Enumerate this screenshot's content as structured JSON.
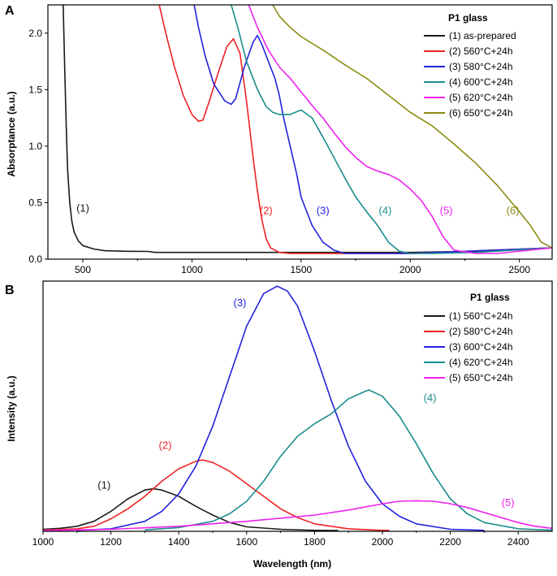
{
  "chart_data": [
    {
      "panel": "A",
      "type": "line",
      "title": "",
      "xlabel": "",
      "ylabel": "Absorptance (a.u.)",
      "xlim": [
        340,
        2650
      ],
      "ylim": [
        0,
        2.25
      ],
      "xticks": [
        500,
        1000,
        1500,
        2000,
        2500
      ],
      "xtick_labels": [
        "500",
        "1000",
        "1500",
        "2000",
        "2500"
      ],
      "yticks": [
        0.0,
        0.5,
        1.0,
        1.5,
        2.0
      ],
      "ytick_labels": [
        "0.0",
        "0.5",
        "1.0",
        "1.5",
        "2.0"
      ],
      "legend_title": "P1 glass",
      "legend_position": "top-right",
      "series": [
        {
          "name": "(1) as-prepared",
          "label": "(1)",
          "color": "#1a1a1a",
          "label_at": [
            500,
            0.42
          ],
          "x": [
            410,
            418,
            425,
            430,
            440,
            450,
            460,
            480,
            500,
            550,
            600,
            700,
            800,
            830,
            900,
            1000,
            1200,
            1500,
            2000,
            2300,
            2650
          ],
          "y": [
            2.25,
            1.6,
            1.1,
            0.8,
            0.5,
            0.33,
            0.24,
            0.16,
            0.12,
            0.09,
            0.075,
            0.07,
            0.068,
            0.06,
            0.06,
            0.06,
            0.06,
            0.06,
            0.06,
            0.07,
            0.1
          ]
        },
        {
          "name": "(2) 560°C+24h",
          "label": "(2)",
          "color": "#ee2222",
          "label_at": [
            1340,
            0.4
          ],
          "x": [
            850,
            880,
            920,
            960,
            1000,
            1030,
            1050,
            1080,
            1120,
            1160,
            1190,
            1220,
            1250,
            1280,
            1300,
            1320,
            1340,
            1360,
            1400,
            1450,
            1550,
            1700,
            2000,
            2650
          ],
          "y": [
            2.25,
            2.0,
            1.7,
            1.45,
            1.28,
            1.22,
            1.23,
            1.4,
            1.65,
            1.88,
            1.95,
            1.82,
            1.4,
            0.9,
            0.6,
            0.35,
            0.18,
            0.1,
            0.06,
            0.05,
            0.05,
            0.05,
            0.05,
            0.1
          ]
        },
        {
          "name": "(3) 580°C+24h",
          "label": "(3)",
          "color": "#2222dd",
          "label_at": [
            1600,
            0.4
          ],
          "x": [
            1010,
            1030,
            1060,
            1100,
            1150,
            1180,
            1200,
            1240,
            1280,
            1300,
            1320,
            1350,
            1380,
            1400,
            1420,
            1450,
            1480,
            1500,
            1550,
            1600,
            1650,
            1700,
            1800,
            2000,
            2650
          ],
          "y": [
            2.25,
            2.05,
            1.8,
            1.55,
            1.4,
            1.37,
            1.42,
            1.7,
            1.92,
            1.98,
            1.9,
            1.75,
            1.6,
            1.45,
            1.25,
            1.0,
            0.75,
            0.55,
            0.3,
            0.15,
            0.08,
            0.05,
            0.05,
            0.05,
            0.1
          ]
        },
        {
          "name": "(4) 600°C+24h",
          "label": "(4)",
          "color": "#1a8c8c",
          "label_at": [
            1885,
            0.4
          ],
          "x": [
            1180,
            1210,
            1250,
            1300,
            1340,
            1370,
            1400,
            1450,
            1500,
            1550,
            1600,
            1650,
            1700,
            1750,
            1800,
            1850,
            1900,
            1950,
            2000,
            2100,
            2300,
            2650
          ],
          "y": [
            2.25,
            2.05,
            1.75,
            1.5,
            1.35,
            1.3,
            1.28,
            1.28,
            1.32,
            1.25,
            1.08,
            0.9,
            0.72,
            0.55,
            0.42,
            0.3,
            0.15,
            0.07,
            0.05,
            0.05,
            0.06,
            0.1
          ]
        },
        {
          "name": "(5) 620°C+24h",
          "label": "(5)",
          "color": "#ee22ee",
          "label_at": [
            2165,
            0.4
          ],
          "x": [
            1260,
            1300,
            1350,
            1400,
            1450,
            1500,
            1550,
            1600,
            1650,
            1700,
            1750,
            1800,
            1850,
            1900,
            1950,
            2000,
            2050,
            2100,
            2150,
            2200,
            2300,
            2400,
            2650
          ],
          "y": [
            2.25,
            2.05,
            1.85,
            1.7,
            1.6,
            1.48,
            1.36,
            1.25,
            1.12,
            1.0,
            0.9,
            0.82,
            0.78,
            0.75,
            0.7,
            0.62,
            0.52,
            0.38,
            0.2,
            0.08,
            0.05,
            0.05,
            0.1
          ]
        },
        {
          "name": "(6) 650°C+24h",
          "label": "(6)",
          "color": "#8c8c14",
          "label_at": [
            2470,
            0.4
          ],
          "x": [
            1370,
            1400,
            1450,
            1500,
            1600,
            1700,
            1800,
            1900,
            2000,
            2100,
            2200,
            2300,
            2400,
            2500,
            2550,
            2600,
            2650
          ],
          "y": [
            2.25,
            2.15,
            2.05,
            1.97,
            1.85,
            1.72,
            1.6,
            1.45,
            1.3,
            1.18,
            1.02,
            0.85,
            0.65,
            0.42,
            0.3,
            0.15,
            0.1
          ]
        }
      ]
    },
    {
      "panel": "B",
      "type": "line",
      "title": "",
      "xlabel": "Wavelength (nm)",
      "ylabel": "Intensity (a.u.)",
      "xlim": [
        1000,
        2500
      ],
      "ylim": [
        0,
        1.0
      ],
      "xticks": [
        1000,
        1200,
        1400,
        1600,
        1800,
        2000,
        2200,
        2400
      ],
      "xtick_labels": [
        "1000",
        "1200",
        "1400",
        "1600",
        "1800",
        "2000",
        "2200",
        "2400"
      ],
      "yticks": [],
      "legend_title": "P1 glass",
      "legend_position": "top-right",
      "series": [
        {
          "name": "(1) 560°C+24h",
          "label": "(1)",
          "color": "#1a1a1a",
          "label_at": [
            1180,
            0.17
          ],
          "x": [
            1000,
            1050,
            1100,
            1150,
            1200,
            1250,
            1300,
            1325,
            1350,
            1400,
            1450,
            1500,
            1550,
            1600,
            1700,
            1800,
            1870
          ],
          "y": [
            0.008,
            0.012,
            0.02,
            0.04,
            0.08,
            0.13,
            0.165,
            0.17,
            0.165,
            0.14,
            0.1,
            0.065,
            0.035,
            0.018,
            0.008,
            0.004,
            0.003
          ]
        },
        {
          "name": "(2) 580°C+24h",
          "label": "(2)",
          "color": "#ee2222",
          "label_at": [
            1360,
            0.33
          ],
          "x": [
            1000,
            1100,
            1150,
            1200,
            1250,
            1300,
            1350,
            1400,
            1450,
            1470,
            1500,
            1550,
            1600,
            1650,
            1700,
            1750,
            1800,
            1900,
            2000,
            2020
          ],
          "y": [
            0.005,
            0.01,
            0.02,
            0.05,
            0.09,
            0.14,
            0.2,
            0.25,
            0.28,
            0.285,
            0.275,
            0.24,
            0.19,
            0.14,
            0.09,
            0.055,
            0.03,
            0.01,
            0.004,
            0.004
          ]
        },
        {
          "name": "(3) 600°C+24h",
          "label": "(3)",
          "color": "#2222dd",
          "label_at": [
            1580,
            0.9
          ],
          "x": [
            1100,
            1200,
            1300,
            1350,
            1400,
            1450,
            1500,
            1550,
            1600,
            1650,
            1690,
            1720,
            1750,
            1800,
            1850,
            1900,
            1950,
            2000,
            2050,
            2100,
            2200,
            2300
          ],
          "y": [
            0.004,
            0.01,
            0.04,
            0.08,
            0.15,
            0.26,
            0.42,
            0.62,
            0.82,
            0.95,
            0.98,
            0.96,
            0.9,
            0.72,
            0.52,
            0.34,
            0.2,
            0.11,
            0.06,
            0.03,
            0.008,
            0.004
          ]
        },
        {
          "name": "(4) 620°C+24h",
          "label": "(4)",
          "color": "#1a8c8c",
          "label_at": [
            2140,
            0.52
          ],
          "x": [
            1300,
            1400,
            1500,
            1550,
            1600,
            1650,
            1700,
            1750,
            1800,
            1850,
            1900,
            1950,
            1960,
            2000,
            2050,
            2100,
            2150,
            2200,
            2250,
            2300,
            2400,
            2500
          ],
          "y": [
            0.006,
            0.015,
            0.04,
            0.07,
            0.12,
            0.2,
            0.3,
            0.38,
            0.43,
            0.47,
            0.53,
            0.56,
            0.565,
            0.54,
            0.46,
            0.35,
            0.23,
            0.13,
            0.07,
            0.035,
            0.01,
            0.005
          ]
        },
        {
          "name": "(5) 650°C+24h",
          "label": "(5)",
          "color": "#ee22ee",
          "label_at": [
            2370,
            0.1
          ],
          "x": [
            1000,
            1200,
            1400,
            1600,
            1800,
            1900,
            2000,
            2050,
            2100,
            2150,
            2200,
            2250,
            2300,
            2350,
            2400,
            2450,
            2500
          ],
          "y": [
            0.003,
            0.008,
            0.02,
            0.04,
            0.065,
            0.085,
            0.11,
            0.12,
            0.122,
            0.12,
            0.11,
            0.095,
            0.075,
            0.055,
            0.035,
            0.02,
            0.012
          ]
        }
      ]
    }
  ]
}
